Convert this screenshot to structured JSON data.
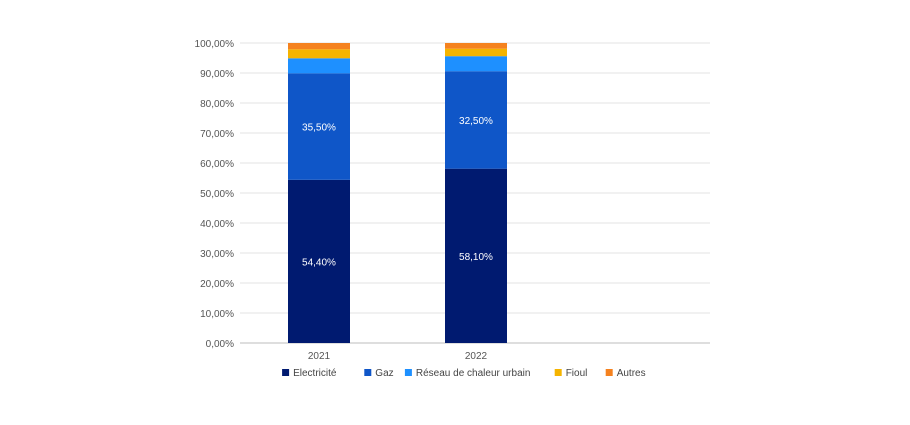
{
  "chart_data": {
    "type": "bar",
    "stacked": true,
    "categories": [
      "2021",
      "2022"
    ],
    "series": [
      {
        "name": "Electricité",
        "color": "#001a70",
        "values": [
          54.4,
          58.1
        ],
        "labels": [
          "54,40%",
          "58,10%"
        ]
      },
      {
        "name": "Gaz",
        "color": "#0f56c8",
        "values": [
          35.5,
          32.5
        ],
        "labels": [
          "35,50%",
          "32,50%"
        ]
      },
      {
        "name": "Réseau de chaleur urbain",
        "color": "#1e90ff",
        "values": [
          5.0,
          5.0
        ],
        "labels": [
          "",
          ""
        ]
      },
      {
        "name": "Fioul",
        "color": "#f5b400",
        "values": [
          3.0,
          2.5
        ],
        "labels": [
          "",
          ""
        ]
      },
      {
        "name": "Autres",
        "color": "#f5821f",
        "values": [
          2.1,
          1.9
        ],
        "labels": [
          "",
          ""
        ]
      }
    ],
    "ylim": [
      0,
      100
    ],
    "yticks": [
      0,
      10,
      20,
      30,
      40,
      50,
      60,
      70,
      80,
      90,
      100
    ],
    "ytick_labels": [
      "0,00%",
      "10,00%",
      "20,00%",
      "30,00%",
      "40,00%",
      "50,00%",
      "60,00%",
      "70,00%",
      "80,00%",
      "90,00%",
      "100,00%"
    ],
    "grid": true,
    "legend_position": "bottom",
    "title": "",
    "xlabel": "",
    "ylabel": ""
  }
}
